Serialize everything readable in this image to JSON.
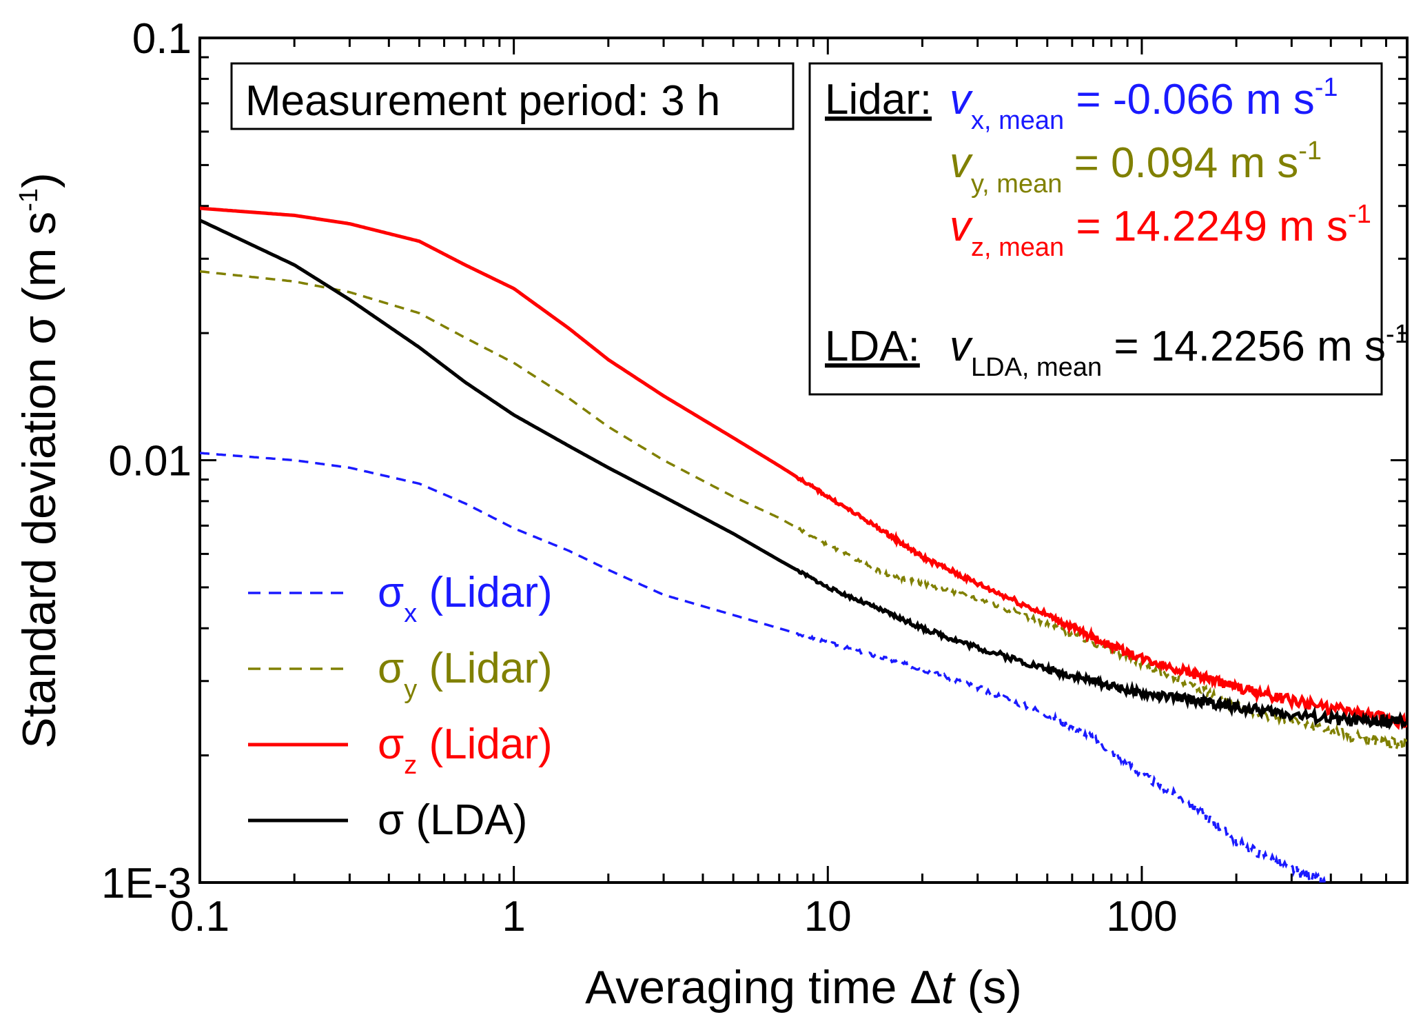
{
  "chart_data": {
    "type": "line",
    "x_scale": "log",
    "y_scale": "log",
    "xlim": [
      0.1,
      700
    ],
    "ylim": [
      0.001,
      0.1
    ],
    "x_ticks": [
      {
        "value": 0.1,
        "label": "0.1"
      },
      {
        "value": 1,
        "label": "1"
      },
      {
        "value": 10,
        "label": "10"
      },
      {
        "value": 100,
        "label": "100"
      }
    ],
    "y_ticks": [
      {
        "value": 0.001,
        "label": "1E-3"
      },
      {
        "value": 0.01,
        "label": "0.01"
      },
      {
        "value": 0.1,
        "label": "0.1"
      }
    ],
    "xlabel": {
      "main": "Averaging time ",
      "delta": "Δ",
      "var": "t",
      "unit": " (s)"
    },
    "ylabel": {
      "main": "Standard deviation  σ (m s",
      "sup": "-1",
      "close": ")"
    },
    "legend_position": "lower-left",
    "series": [
      {
        "key": "sx",
        "legend_sym": "σ",
        "legend_sub": "x",
        "legend_rest": " (Lidar)",
        "color": "#1a1aff",
        "dash": "dashed",
        "points": [
          [
            0.1,
            0.0104
          ],
          [
            0.2,
            0.01
          ],
          [
            0.3,
            0.0096
          ],
          [
            0.5,
            0.0088
          ],
          [
            0.7,
            0.0079
          ],
          [
            1,
            0.0069
          ],
          [
            1.5,
            0.0061
          ],
          [
            2,
            0.0055
          ],
          [
            3,
            0.0048
          ],
          [
            5,
            0.0043
          ],
          [
            7,
            0.004
          ],
          [
            10,
            0.0037
          ],
          [
            15,
            0.0034
          ],
          [
            20,
            0.0032
          ],
          [
            30,
            0.0029
          ],
          [
            50,
            0.0025
          ],
          [
            70,
            0.0022
          ],
          [
            100,
            0.0018
          ],
          [
            150,
            0.0015
          ],
          [
            200,
            0.00125
          ],
          [
            300,
            0.00108
          ],
          [
            400,
            0.00098
          ]
        ]
      },
      {
        "key": "sy",
        "legend_sym": "σ",
        "legend_sub": "y",
        "legend_rest": " (Lidar)",
        "color": "#808000",
        "dash": "dashed",
        "points": [
          [
            0.1,
            0.028
          ],
          [
            0.2,
            0.0265
          ],
          [
            0.3,
            0.025
          ],
          [
            0.5,
            0.0223
          ],
          [
            0.7,
            0.0195
          ],
          [
            1,
            0.017
          ],
          [
            1.5,
            0.014
          ],
          [
            2,
            0.012
          ],
          [
            3,
            0.01
          ],
          [
            5,
            0.0082
          ],
          [
            7,
            0.0073
          ],
          [
            10,
            0.0063
          ],
          [
            15,
            0.0054
          ],
          [
            20,
            0.0051
          ],
          [
            30,
            0.0047
          ],
          [
            50,
            0.0041
          ],
          [
            70,
            0.0037
          ],
          [
            100,
            0.0033
          ],
          [
            150,
            0.0029
          ],
          [
            200,
            0.0026
          ],
          [
            300,
            0.0024
          ],
          [
            500,
            0.0022
          ],
          [
            700,
            0.0021
          ]
        ]
      },
      {
        "key": "sz",
        "legend_sym": "σ",
        "legend_sub": "z",
        "legend_rest": " (Lidar)",
        "color": "#ff0000",
        "dash": "solid",
        "points": [
          [
            0.1,
            0.0395
          ],
          [
            0.2,
            0.038
          ],
          [
            0.3,
            0.0363
          ],
          [
            0.5,
            0.033
          ],
          [
            0.7,
            0.029
          ],
          [
            1,
            0.0255
          ],
          [
            1.5,
            0.0205
          ],
          [
            2,
            0.0173
          ],
          [
            3,
            0.0142
          ],
          [
            5,
            0.0113
          ],
          [
            7,
            0.0097
          ],
          [
            10,
            0.0082
          ],
          [
            15,
            0.0068
          ],
          [
            20,
            0.0059
          ],
          [
            30,
            0.0051
          ],
          [
            50,
            0.0043
          ],
          [
            70,
            0.0038
          ],
          [
            100,
            0.0034
          ],
          [
            150,
            0.0031
          ],
          [
            200,
            0.0029
          ],
          [
            300,
            0.0027
          ],
          [
            500,
            0.0025
          ],
          [
            700,
            0.0024
          ]
        ]
      },
      {
        "key": "sl",
        "legend_sym": "σ",
        "legend_sub": "",
        "legend_rest": " (LDA)",
        "color": "#000000",
        "dash": "solid",
        "points": [
          [
            0.1,
            0.037
          ],
          [
            0.2,
            0.029
          ],
          [
            0.3,
            0.024
          ],
          [
            0.5,
            0.0185
          ],
          [
            0.7,
            0.0153
          ],
          [
            1,
            0.0128
          ],
          [
            1.5,
            0.0108
          ],
          [
            2,
            0.0096
          ],
          [
            3,
            0.0082
          ],
          [
            5,
            0.0067
          ],
          [
            7,
            0.0058
          ],
          [
            10,
            0.005
          ],
          [
            15,
            0.0044
          ],
          [
            20,
            0.004
          ],
          [
            30,
            0.0036
          ],
          [
            50,
            0.0032
          ],
          [
            70,
            0.003
          ],
          [
            100,
            0.0028
          ],
          [
            150,
            0.0027
          ],
          [
            200,
            0.0026
          ],
          [
            300,
            0.0025
          ],
          [
            500,
            0.0024
          ],
          [
            700,
            0.0024
          ]
        ]
      }
    ]
  },
  "annotations": {
    "period_box": "Measurement period: 3 h",
    "lidar_label": "Lidar:",
    "lda_label": "LDA:",
    "rows": [
      {
        "sym": "v",
        "sub": "x, mean",
        "eq": " = -0.066 m s",
        "sup": "-1",
        "color": "#1a1aff"
      },
      {
        "sym": "v",
        "sub": "y, mean",
        "eq": " = 0.094 m s",
        "sup": "-1",
        "color": "#808000"
      },
      {
        "sym": "v",
        "sub": "z, mean",
        "eq": " = 14.2249 m s",
        "sup": "-1",
        "color": "#ff0000"
      },
      {
        "sym": "v",
        "sub": "LDA, mean",
        "eq": " = 14.2256 m s",
        "sup": "-1",
        "color": "#000000"
      }
    ]
  }
}
